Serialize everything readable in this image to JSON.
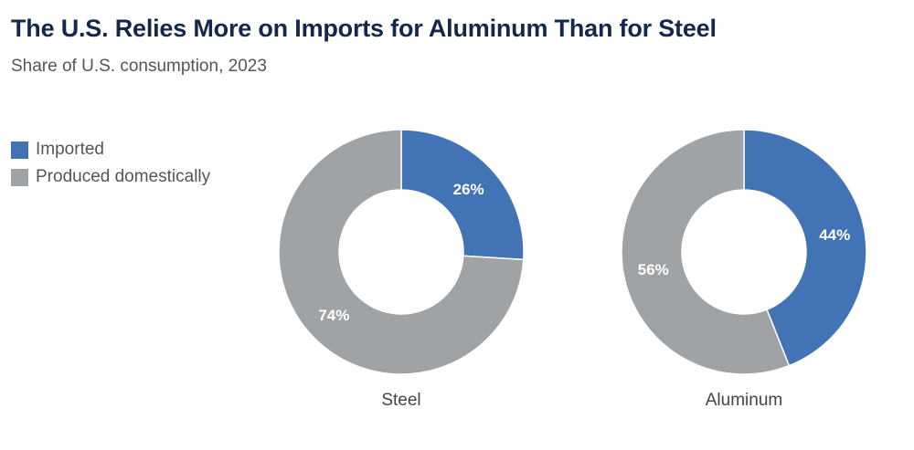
{
  "chart_data": {
    "type": "pie",
    "title": "The U.S. Relies More on Imports for Aluminum Than for Steel",
    "subtitle": "Share of U.S. consumption, 2023",
    "legend": [
      {
        "label": "Imported",
        "color": "#4273b5"
      },
      {
        "label": "Produced domestically",
        "color": "#a0a3a6"
      }
    ],
    "legend_placement": "top-left",
    "charts": [
      {
        "name": "Steel",
        "values": [
          26,
          74
        ],
        "labels": [
          "26%",
          "74%"
        ]
      },
      {
        "name": "Aluminum",
        "values": [
          44,
          56
        ],
        "labels": [
          "44%",
          "56%"
        ]
      }
    ]
  }
}
